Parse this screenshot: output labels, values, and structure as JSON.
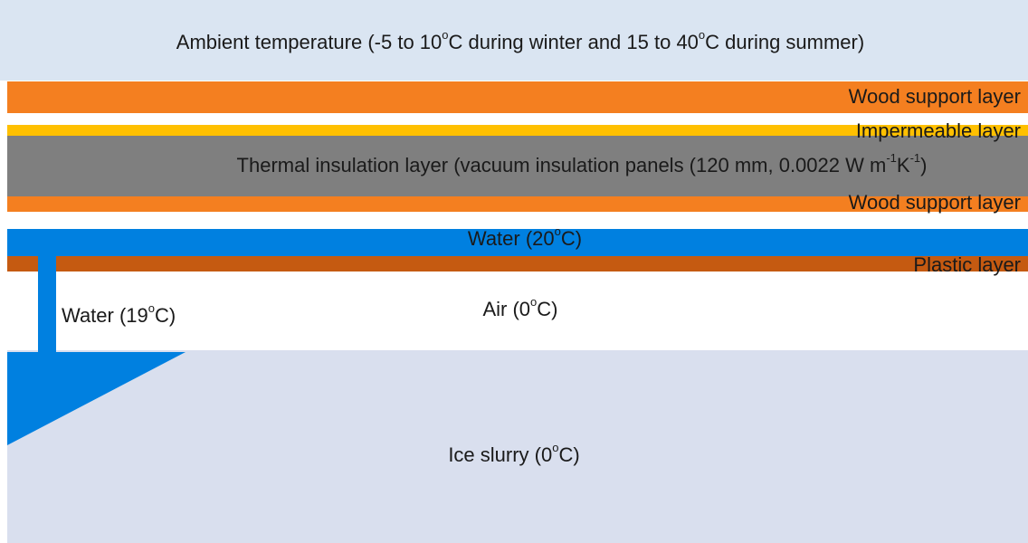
{
  "layers": [
    {
      "label": [
        "Ambient temperature (-5 to 10",
        "o",
        "C during winter and 15 to 40",
        "o",
        "C during summer)"
      ]
    },
    {
      "label": [
        "Wood support layer"
      ]
    },
    {
      "label": [
        "Impermeable layer"
      ]
    },
    {
      "label": [
        "Thermal insulation layer (vacuum insulation panels (120 mm, 0.0022 W m",
        "-1",
        "K",
        "-1",
        ")"
      ]
    },
    {
      "label": [
        "Wood support layer"
      ]
    },
    {
      "label": [
        "Water (20",
        "o",
        "C)"
      ]
    },
    {
      "label": [
        "Plastic layer"
      ]
    },
    {
      "label": [
        "Air (0",
        "o",
        "C)"
      ]
    },
    {
      "label": [
        "Water (19",
        "o",
        "C)"
      ]
    },
    {
      "label": [
        "Ice slurry (0",
        "o",
        "C)"
      ]
    }
  ]
}
